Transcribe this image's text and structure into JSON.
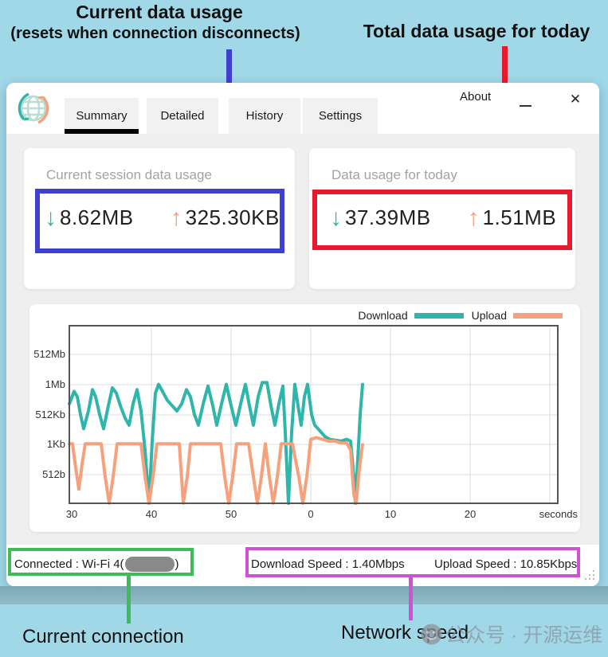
{
  "annotations": {
    "top_left_title": "Current data usage",
    "top_left_subtitle": "(resets when connection disconnects)",
    "top_right_title": "Total data usage for today",
    "bottom_left_label": "Current connection",
    "bottom_right_label": "Network speed",
    "colors": {
      "blue": "#4040cf",
      "red": "#e8192c",
      "green": "#3fbb58",
      "purple": "#cf52d6"
    }
  },
  "window": {
    "tabs": [
      {
        "label": "Summary",
        "selected": true
      },
      {
        "label": "Detailed",
        "selected": false
      },
      {
        "label": "History",
        "selected": false
      },
      {
        "label": "Settings",
        "selected": false
      }
    ],
    "about_label": "About",
    "close_icon": "✕"
  },
  "icons": {
    "download_arrow": "↓",
    "upload_arrow": "↑"
  },
  "cards": {
    "session": {
      "title": "Current session data usage",
      "download": "8.62MB",
      "upload": "325.30KB"
    },
    "today": {
      "title": "Data usage for today",
      "download": "37.39MB",
      "upload": "1.51MB"
    }
  },
  "chart_data": {
    "type": "line",
    "title": "",
    "x_unit_label": "seconds",
    "x_ticks": [
      "30",
      "40",
      "50",
      "0",
      "10",
      "20"
    ],
    "y_ticks": [
      "512Mb",
      "1Mb",
      "512Kb",
      "1Kb",
      "512b"
    ],
    "grid": true,
    "legend_position": "top-right",
    "legend": [
      {
        "name": "Download",
        "color": "#2fb5a9"
      },
      {
        "name": "Upload",
        "color": "#f7a07c"
      }
    ],
    "note": "x = pixels from plot left edge (10 px per second, ticks every 100); y = fraction of plot height from bottom axis; gridline fractions: 512b=0.165, 1Kb=0.335, 512Kb=0.50, 1Mb=0.67, 512Mb=0.835",
    "series": [
      {
        "name": "Download",
        "color": "#2fb5a9",
        "points": [
          [
            0,
            0.56
          ],
          [
            6,
            0.63
          ],
          [
            10,
            0.6
          ],
          [
            14,
            0.5
          ],
          [
            18,
            0.42
          ],
          [
            24,
            0.52
          ],
          [
            29,
            0.64
          ],
          [
            33,
            0.6
          ],
          [
            38,
            0.5
          ],
          [
            43,
            0.42
          ],
          [
            49,
            0.55
          ],
          [
            54,
            0.65
          ],
          [
            59,
            0.62
          ],
          [
            64,
            0.55
          ],
          [
            70,
            0.48
          ],
          [
            75,
            0.44
          ],
          [
            80,
            0.56
          ],
          [
            85,
            0.64
          ],
          [
            90,
            0.52
          ],
          [
            95,
            0.3
          ],
          [
            100,
            0
          ],
          [
            104,
            0.35
          ],
          [
            108,
            0.62
          ],
          [
            112,
            0.67
          ],
          [
            117,
            0.63
          ],
          [
            123,
            0.58
          ],
          [
            129,
            0.55
          ],
          [
            135,
            0.52
          ],
          [
            141,
            0.56
          ],
          [
            147,
            0.64
          ],
          [
            152,
            0.6
          ],
          [
            157,
            0.5
          ],
          [
            162,
            0.44
          ],
          [
            168,
            0.56
          ],
          [
            174,
            0.66
          ],
          [
            180,
            0.55
          ],
          [
            185,
            0.44
          ],
          [
            191,
            0.56
          ],
          [
            197,
            0.67
          ],
          [
            203,
            0.55
          ],
          [
            209,
            0.44
          ],
          [
            215,
            0.56
          ],
          [
            221,
            0.67
          ],
          [
            226,
            0.55
          ],
          [
            231,
            0.44
          ],
          [
            237,
            0.6
          ],
          [
            242,
            0.68
          ],
          [
            248,
            0.68
          ],
          [
            253,
            0.55
          ],
          [
            258,
            0.44
          ],
          [
            263,
            0.56
          ],
          [
            268,
            0.66
          ],
          [
            271,
            0.4
          ],
          [
            275,
            0
          ],
          [
            279,
            0.4
          ],
          [
            283,
            0.67
          ],
          [
            287,
            0.55
          ],
          [
            291,
            0.44
          ],
          [
            295,
            0.6
          ],
          [
            299,
            0.67
          ],
          [
            304,
            0.5
          ],
          [
            308,
            0.44
          ],
          [
            312,
            0.42
          ],
          [
            316,
            0.4
          ],
          [
            321,
            0.375
          ],
          [
            327,
            0.36
          ],
          [
            334,
            0.355
          ],
          [
            341,
            0.35
          ],
          [
            348,
            0.36
          ],
          [
            353,
            0.35
          ],
          [
            357,
            0.15
          ],
          [
            359,
            0
          ],
          [
            362,
            0.25
          ],
          [
            365,
            0.5
          ],
          [
            368,
            0.67
          ]
        ]
      },
      {
        "name": "Upload",
        "color": "#f7a07c",
        "points": [
          [
            0,
            0.335
          ],
          [
            4,
            0.335
          ],
          [
            8,
            0.2
          ],
          [
            12,
            0.08
          ],
          [
            16,
            0.22
          ],
          [
            20,
            0.335
          ],
          [
            28,
            0.335
          ],
          [
            40,
            0.335
          ],
          [
            45,
            0.15
          ],
          [
            50,
            0
          ],
          [
            55,
            0.15
          ],
          [
            60,
            0.335
          ],
          [
            75,
            0.335
          ],
          [
            90,
            0.335
          ],
          [
            95,
            0.15
          ],
          [
            100,
            0
          ],
          [
            105,
            0.15
          ],
          [
            110,
            0.335
          ],
          [
            125,
            0.335
          ],
          [
            138,
            0.335
          ],
          [
            143,
            0
          ],
          [
            148,
            0.15
          ],
          [
            152,
            0.335
          ],
          [
            170,
            0.335
          ],
          [
            190,
            0.335
          ],
          [
            195,
            0.15
          ],
          [
            200,
            0
          ],
          [
            205,
            0.15
          ],
          [
            210,
            0.335
          ],
          [
            225,
            0.335
          ],
          [
            231,
            0.15
          ],
          [
            236,
            0
          ],
          [
            241,
            0.15
          ],
          [
            246,
            0.335
          ],
          [
            251,
            0.15
          ],
          [
            256,
            0
          ],
          [
            261,
            0.15
          ],
          [
            266,
            0.335
          ],
          [
            280,
            0.335
          ],
          [
            288,
            0.15
          ],
          [
            293,
            0
          ],
          [
            298,
            0.15
          ],
          [
            303,
            0.36
          ],
          [
            310,
            0.37
          ],
          [
            318,
            0.36
          ],
          [
            325,
            0.35
          ],
          [
            333,
            0.35
          ],
          [
            341,
            0.34
          ],
          [
            348,
            0.34
          ],
          [
            353,
            0.3
          ],
          [
            357,
            0.05
          ],
          [
            360,
            0
          ],
          [
            364,
            0.2
          ],
          [
            368,
            0.33
          ]
        ]
      }
    ]
  },
  "status_bar": {
    "connected_prefix": "Connected : Wi-Fi 4(",
    "connected_suffix": ")",
    "download_speed": "Download Speed : 1.40Mbps",
    "upload_speed": "Upload Speed : 10.85Kbps"
  },
  "watermark": {
    "text": "公众号 · 开源运维"
  }
}
